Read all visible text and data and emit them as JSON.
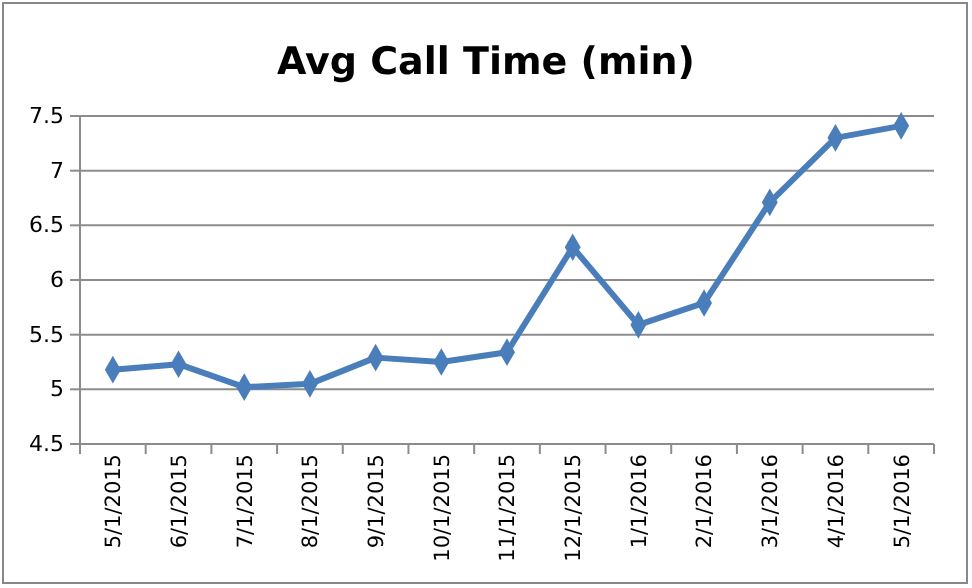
{
  "chart_data": {
    "type": "line",
    "title": "Avg Call Time (min)",
    "categories": [
      "5/1/2015",
      "6/1/2015",
      "7/1/2015",
      "8/1/2015",
      "9/1/2015",
      "10/1/2015",
      "11/1/2015",
      "12/1/2015",
      "1/1/2016",
      "2/1/2016",
      "3/1/2016",
      "4/1/2016",
      "5/1/2016"
    ],
    "series": [
      {
        "color": "#4a7ebb",
        "values": [
          5.18,
          5.23,
          5.02,
          5.05,
          5.29,
          5.25,
          5.34,
          6.3,
          5.59,
          5.79,
          6.71,
          7.3,
          7.41
        ]
      }
    ],
    "ylim": [
      4.5,
      7.5
    ],
    "yticks": [
      4.5,
      5,
      5.5,
      6,
      6.5,
      7,
      7.5
    ],
    "grid": "y",
    "marker": "diamond"
  }
}
